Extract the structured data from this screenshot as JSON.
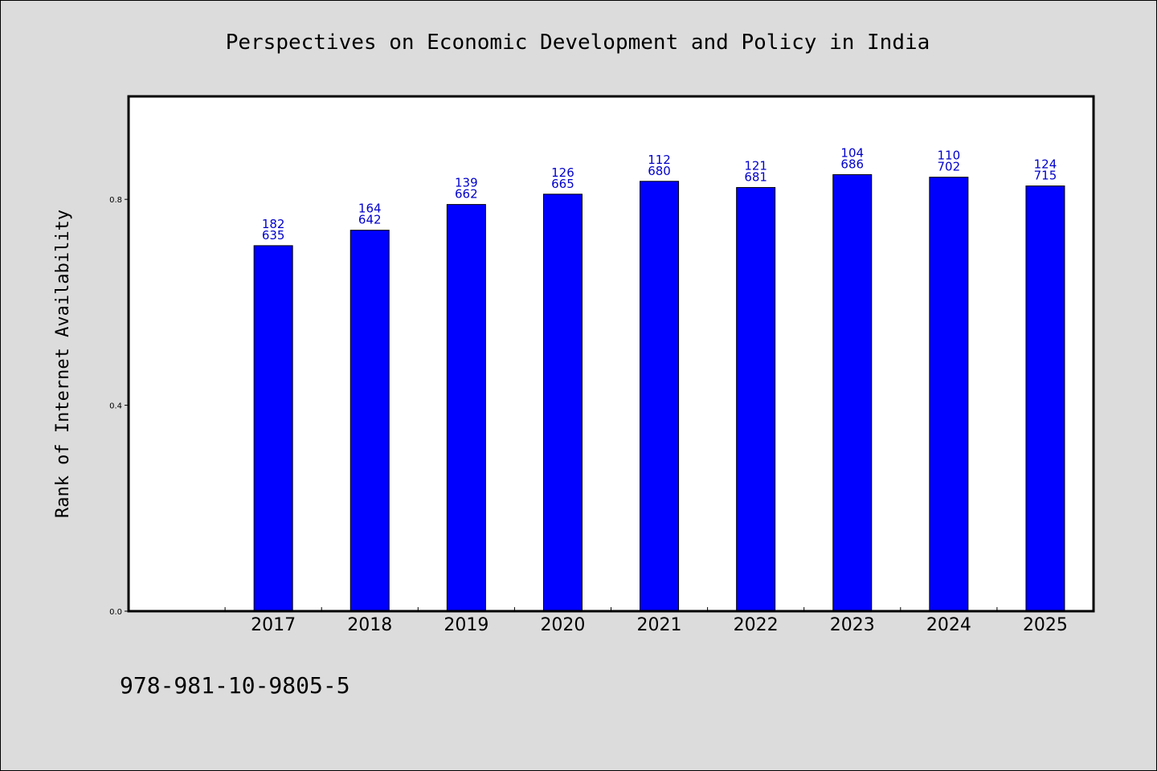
{
  "chart_data": {
    "type": "bar",
    "title": "Perspectives on Economic Development and Policy in India",
    "xlabel": "",
    "ylabel": "Rank of Internet Availability",
    "categories": [
      "2017",
      "2018",
      "2019",
      "2020",
      "2021",
      "2022",
      "2023",
      "2024",
      "2025"
    ],
    "values": [
      0.71,
      0.74,
      0.79,
      0.81,
      0.835,
      0.823,
      0.848,
      0.843,
      0.826
    ],
    "data_labels": [
      [
        "182",
        "635"
      ],
      [
        "164",
        "642"
      ],
      [
        "139",
        "662"
      ],
      [
        "126",
        "665"
      ],
      [
        "112",
        "680"
      ],
      [
        "121",
        "681"
      ],
      [
        "104",
        "686"
      ],
      [
        "110",
        "702"
      ],
      [
        "124",
        "715"
      ]
    ],
    "ylim": [
      0,
      1.0
    ],
    "yticks": [
      0.0,
      0.4,
      0.8
    ],
    "ytick_labels": [
      "0.0",
      "0.4",
      "0.8"
    ],
    "x_slots": 10,
    "grid": false,
    "colors": {
      "bar": "#0000ff",
      "data_label": "#0000cc",
      "figure_background": "#dcdcdc",
      "plot_background": "#ffffff"
    }
  },
  "footer": {
    "isbn": "978-981-10-9805-5"
  }
}
